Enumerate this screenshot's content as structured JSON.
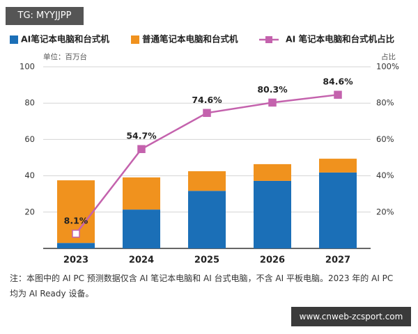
{
  "chart_data": {
    "type": "bar",
    "stacked": true,
    "watermark": "TG: MYYJJPP",
    "unit_label": "单位：百万台",
    "y2_label": "占比",
    "categories": [
      "2023",
      "2024",
      "2025",
      "2026",
      "2027"
    ],
    "series": [
      {
        "name": "AI笔记本电脑和台式机",
        "type": "bar",
        "color": "#1b6fb7",
        "values": [
          3,
          21.4,
          31.7,
          37.2,
          41.8
        ]
      },
      {
        "name": "普通笔记本电脑和台式机",
        "type": "bar",
        "color": "#f0921e",
        "values": [
          34.5,
          17.7,
          10.8,
          9.2,
          7.6
        ]
      },
      {
        "name": "AI 笔记本电脑和台式机占比",
        "type": "line",
        "axis": "y2",
        "color": "#c462ad",
        "values": [
          8.1,
          54.7,
          74.6,
          80.3,
          84.6
        ],
        "value_labels": [
          "8.1%",
          "54.7%",
          "74.6%",
          "80.3%",
          "84.6%"
        ]
      }
    ],
    "ylim": [
      0,
      100
    ],
    "yticks": [
      20,
      40,
      60,
      80,
      100
    ],
    "y2lim": [
      0,
      100
    ],
    "y2ticks": [
      {
        "value": 20,
        "label": "20%"
      },
      {
        "value": 40,
        "label": "40%"
      },
      {
        "value": 60,
        "label": "60%"
      },
      {
        "value": 80,
        "label": "80%"
      },
      {
        "value": 100,
        "label": "100%"
      }
    ],
    "grid": true,
    "note": "注：本图中的 AI PC 预测数据仅含 AI 笔记本电脑和 AI 台式电脑，不含 AI 平板电脑。2023 年的 AI PC 均为 AI Ready 设备。",
    "footer_badge": "www.cnweb-zcsport.com"
  }
}
